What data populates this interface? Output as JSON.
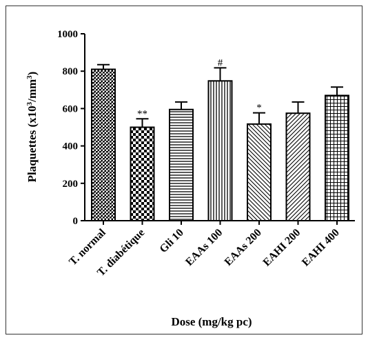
{
  "chart_data": {
    "type": "bar",
    "xlabel": "Dose (mg/kg pc)",
    "ylabel": "Plaquettes (x10",
    "ylabel_sup1": "3",
    "ylabel_mid": "/mm",
    "ylabel_sup2": "3",
    "ylabel_end": ")",
    "ylim": [
      0,
      1000
    ],
    "yticks": [
      0,
      200,
      400,
      600,
      800,
      1000
    ],
    "grid": false,
    "categories": [
      "T. normal",
      "T. diabétique",
      "Gli 10",
      "EAAs 100",
      "EAAs 200",
      "EAHI 200",
      "EAHI 400"
    ],
    "values": [
      810,
      500,
      595,
      748,
      517,
      575,
      670
    ],
    "errors": [
      25,
      45,
      40,
      70,
      60,
      60,
      45
    ],
    "annotations": [
      "",
      "**",
      "",
      "#",
      "*",
      "",
      ""
    ],
    "patterns": [
      "dots",
      "checker",
      "hlines",
      "vlines",
      "diag-left",
      "diag-right",
      "grid"
    ]
  }
}
